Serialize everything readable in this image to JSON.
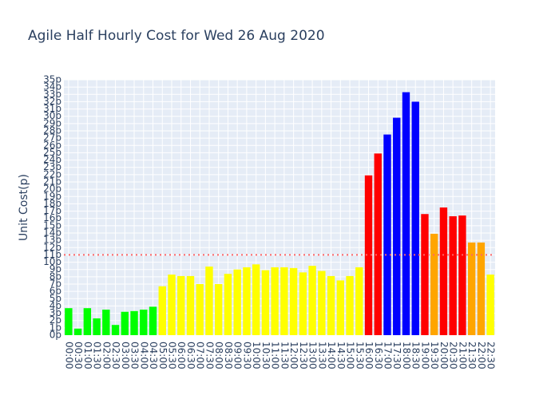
{
  "chart_data": {
    "type": "bar",
    "title": "Agile Half Hourly Cost for Wed 26 Aug 2020",
    "y_label": "Unit Cost(p)",
    "categories": [
      "00:00",
      "00:30",
      "01:00",
      "01:30",
      "02:00",
      "02:30",
      "03:00",
      "03:30",
      "04:00",
      "04:30",
      "05:00",
      "05:30",
      "06:00",
      "06:30",
      "07:00",
      "07:30",
      "08:00",
      "08:30",
      "09:00",
      "09:30",
      "10:00",
      "10:30",
      "11:00",
      "11:30",
      "12:00",
      "12:30",
      "13:00",
      "13:30",
      "14:00",
      "14:30",
      "15:00",
      "15:30",
      "16:00",
      "16:30",
      "17:00",
      "17:30",
      "18:00",
      "18:30",
      "19:00",
      "19:30",
      "20:00",
      "20:30",
      "21:00",
      "21:30",
      "22:00",
      "22:30"
    ],
    "values": [
      3.7,
      0.9,
      3.7,
      2.3,
      3.5,
      1.4,
      3.2,
      3.3,
      3.5,
      3.9,
      6.7,
      8.3,
      8.1,
      8.1,
      7.0,
      9.4,
      7.0,
      8.4,
      9.0,
      9.3,
      9.7,
      8.9,
      9.3,
      9.3,
      9.2,
      8.6,
      9.5,
      8.8,
      8.1,
      7.5,
      8.1,
      9.3,
      21.9,
      24.9,
      27.5,
      29.8,
      33.3,
      32.0,
      16.6,
      13.9,
      17.5,
      16.3,
      16.4,
      12.7,
      12.7,
      8.3
    ],
    "colors": [
      "#00ff00",
      "#00ff00",
      "#00ff00",
      "#00ff00",
      "#00ff00",
      "#00ff00",
      "#00ff00",
      "#00ff00",
      "#00ff00",
      "#00ff00",
      "#ffff00",
      "#ffff00",
      "#ffff00",
      "#ffff00",
      "#ffff00",
      "#ffff00",
      "#ffff00",
      "#ffff00",
      "#ffff00",
      "#ffff00",
      "#ffff00",
      "#ffff00",
      "#ffff00",
      "#ffff00",
      "#ffff00",
      "#ffff00",
      "#ffff00",
      "#ffff00",
      "#ffff00",
      "#ffff00",
      "#ffff00",
      "#ffff00",
      "#ff0000",
      "#ff0000",
      "#0000ff",
      "#0000ff",
      "#0000ff",
      "#0000ff",
      "#ff0000",
      "#ffa500",
      "#ff0000",
      "#ff0000",
      "#ff0000",
      "#ffa500",
      "#ffa500",
      "#ffff00"
    ],
    "reference_line": {
      "value": 11,
      "color": "#ff6666"
    },
    "ylim": [
      0,
      35
    ],
    "yticks": [
      {
        "value": 0,
        "label": "0p"
      },
      {
        "value": 1,
        "label": "1p"
      },
      {
        "value": 2,
        "label": "2p"
      },
      {
        "value": 3,
        "label": "3p"
      },
      {
        "value": 4,
        "label": "4p"
      },
      {
        "value": 5,
        "label": "5p"
      },
      {
        "value": 6,
        "label": "6p"
      },
      {
        "value": 7,
        "label": "7p"
      },
      {
        "value": 8,
        "label": "8p"
      },
      {
        "value": 9,
        "label": "9p"
      },
      {
        "value": 10,
        "label": "10p"
      },
      {
        "value": 11,
        "label": "11p"
      },
      {
        "value": 12,
        "label": "12p"
      },
      {
        "value": 13,
        "label": "13p"
      },
      {
        "value": 14,
        "label": "14p"
      },
      {
        "value": 15,
        "label": "15p"
      },
      {
        "value": 16,
        "label": "16p"
      },
      {
        "value": 17,
        "label": "17p"
      },
      {
        "value": 18,
        "label": "18p"
      },
      {
        "value": 19,
        "label": "19p"
      },
      {
        "value": 20,
        "label": "20p"
      },
      {
        "value": 21,
        "label": "21p"
      },
      {
        "value": 22,
        "label": "22p"
      },
      {
        "value": 23,
        "label": "23p"
      },
      {
        "value": 24,
        "label": "24p"
      },
      {
        "value": 25,
        "label": "25p"
      },
      {
        "value": 26,
        "label": "26p"
      },
      {
        "value": 27,
        "label": "27p"
      },
      {
        "value": 28,
        "label": "28p"
      },
      {
        "value": 29,
        "label": "29p"
      },
      {
        "value": 30,
        "label": "30p"
      },
      {
        "value": 31,
        "label": "31p"
      },
      {
        "value": 32,
        "label": "32p"
      },
      {
        "value": 33,
        "label": "33p"
      },
      {
        "value": 34,
        "label": "34p"
      },
      {
        "value": 35,
        "label": "35p"
      }
    ],
    "grid": true
  }
}
